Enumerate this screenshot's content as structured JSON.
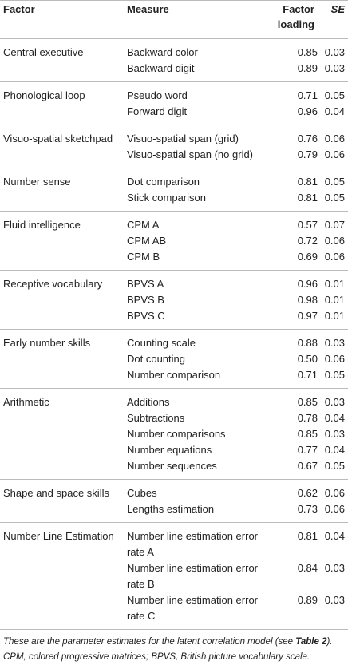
{
  "table": {
    "header": [
      "Factor",
      "Measure",
      "Factor loading",
      "SE"
    ],
    "groups": [
      {
        "factor": "Central executive",
        "rows": [
          [
            "Backward color",
            "0.85",
            "0.03"
          ],
          [
            "Backward digit",
            "0.89",
            "0.03"
          ]
        ]
      },
      {
        "factor": "Phonological loop",
        "rows": [
          [
            "Pseudo word",
            "0.71",
            "0.05"
          ],
          [
            "Forward digit",
            "0.96",
            "0.04"
          ]
        ]
      },
      {
        "factor": "Visuo-spatial sketchpad",
        "rows": [
          [
            "Visuo-spatial span (grid)",
            "0.76",
            "0.06"
          ],
          [
            "Visuo-spatial span (no grid)",
            "0.79",
            "0.06"
          ]
        ]
      },
      {
        "factor": "Number sense",
        "rows": [
          [
            "Dot comparison",
            "0.81",
            "0.05"
          ],
          [
            "Stick comparison",
            "0.81",
            "0.05"
          ]
        ]
      },
      {
        "factor": "Fluid intelligence",
        "rows": [
          [
            "CPM A",
            "0.57",
            "0.07"
          ],
          [
            "CPM AB",
            "0.72",
            "0.06"
          ],
          [
            "CPM B",
            "0.69",
            "0.06"
          ]
        ]
      },
      {
        "factor": "Receptive vocabulary",
        "rows": [
          [
            "BPVS A",
            "0.96",
            "0.01"
          ],
          [
            "BPVS B",
            "0.98",
            "0.01"
          ],
          [
            "BPVS C",
            "0.97",
            "0.01"
          ]
        ]
      },
      {
        "factor": "Early number skills",
        "rows": [
          [
            "Counting scale",
            "0.88",
            "0.03"
          ],
          [
            "Dot counting",
            "0.50",
            "0.06"
          ],
          [
            "Number comparison",
            "0.71",
            "0.05"
          ]
        ]
      },
      {
        "factor": "Arithmetic",
        "rows": [
          [
            "Additions",
            "0.85",
            "0.03"
          ],
          [
            "Subtractions",
            "0.78",
            "0.04"
          ],
          [
            "Number comparisons",
            "0.85",
            "0.03"
          ],
          [
            "Number equations",
            "0.77",
            "0.04"
          ],
          [
            "Number sequences",
            "0.67",
            "0.05"
          ]
        ]
      },
      {
        "factor": "Shape and space skills",
        "rows": [
          [
            "Cubes",
            "0.62",
            "0.06"
          ],
          [
            "Lengths estimation",
            "0.73",
            "0.06"
          ]
        ]
      },
      {
        "factor": "Number Line Estimation",
        "rows": [
          [
            "Number line estimation error rate A",
            "0.81",
            "0.04"
          ],
          [
            "Number line estimation error rate B",
            "0.84",
            "0.03"
          ],
          [
            "Number line estimation error rate C",
            "0.89",
            "0.03"
          ]
        ]
      }
    ],
    "footnote": [
      "These are the parameter estimates for the latent correlation model (see ",
      "Table 2",
      "). CPM, colored progressive matrices; BPVS, British picture vocabulary scale."
    ]
  }
}
